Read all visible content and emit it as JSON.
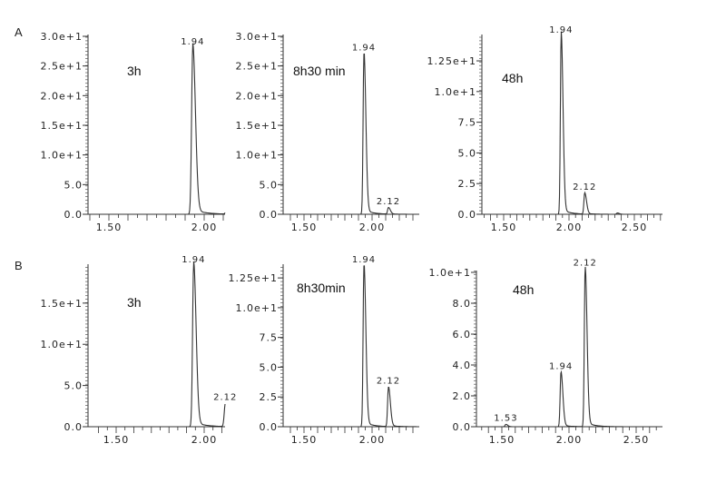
{
  "figure": {
    "panel_labels": [
      "A",
      "B"
    ]
  },
  "chart_data": [
    {
      "type": "line",
      "id": "A-3h",
      "row": "A",
      "title": "3h",
      "xlabel": "",
      "ylabel": "",
      "xlim": [
        1.39,
        2.28
      ],
      "ylim": [
        0,
        30
      ],
      "xticks": [
        "1.50",
        "2.00"
      ],
      "yticks": [
        "0.0",
        "5.0",
        "1.0e+1",
        "1.5e+1",
        "2.0e+1",
        "2.5e+1",
        "3.0e+1"
      ],
      "peaks": [
        {
          "rt": 1.94,
          "label": "1.94",
          "height": 28.0
        },
        {
          "rt": 2.12,
          "label": "",
          "height": 1.0
        }
      ]
    },
    {
      "type": "line",
      "id": "A-8h30min",
      "row": "A",
      "title": "8h30 min",
      "xlabel": "",
      "ylabel": "",
      "xlim": [
        1.35,
        2.3
      ],
      "ylim": [
        0,
        30
      ],
      "xticks": [
        "1.50",
        "2.00"
      ],
      "yticks": [
        "0.0",
        "5.0",
        "1.0e+1",
        "1.5e+1",
        "2.0e+1",
        "2.5e+1",
        "3.0e+1"
      ],
      "peaks": [
        {
          "rt": 1.94,
          "label": "1.94",
          "height": 27.0
        },
        {
          "rt": 2.12,
          "label": "2.12",
          "height": 1.1
        }
      ]
    },
    {
      "type": "line",
      "id": "A-48h",
      "row": "A",
      "title": "48h",
      "xlabel": "",
      "ylabel": "",
      "xlim": [
        1.38,
        2.6
      ],
      "ylim": [
        0,
        14.5
      ],
      "xticks": [
        "1.50",
        "2.00",
        "2.50"
      ],
      "yticks": [
        "0.0",
        "2.5",
        "5.0",
        "7.5",
        "1.0e+1",
        "1.25e+1"
      ],
      "peaks": [
        {
          "rt": 1.94,
          "label": "1.94",
          "height": 14.5
        },
        {
          "rt": 2.12,
          "label": "2.12",
          "height": 1.7
        },
        {
          "rt": 2.37,
          "label": "",
          "height": 0.1
        }
      ]
    },
    {
      "type": "line",
      "id": "B-3h",
      "row": "B",
      "title": "3h",
      "xlabel": "",
      "ylabel": "",
      "xlim": [
        1.35,
        2.28
      ],
      "ylim": [
        0,
        19.5
      ],
      "xticks": [
        "1.50",
        "2.00"
      ],
      "yticks": [
        "0.0",
        "5.0",
        "1.0e+1",
        "1.5e+1"
      ],
      "peaks": [
        {
          "rt": 1.94,
          "label": "1.94",
          "height": 19.5
        },
        {
          "rt": 2.12,
          "label": "2.12",
          "height": 2.8
        }
      ]
    },
    {
      "type": "line",
      "id": "B-8h30min",
      "row": "B",
      "title": "8h30min",
      "xlabel": "",
      "ylabel": "",
      "xlim": [
        1.35,
        2.3
      ],
      "ylim": [
        0,
        13.5
      ],
      "xticks": [
        "1.50",
        "2.00"
      ],
      "yticks": [
        "0.0",
        "2.5",
        "5.0",
        "7.5",
        "1.0e+1",
        "1.25e+1"
      ],
      "peaks": [
        {
          "rt": 1.94,
          "label": "1.94",
          "height": 13.5
        },
        {
          "rt": 2.12,
          "label": "2.12",
          "height": 3.3
        }
      ]
    },
    {
      "type": "line",
      "id": "B-48h",
      "row": "B",
      "title": "48h",
      "xlabel": "",
      "ylabel": "",
      "xlim": [
        1.35,
        2.6
      ],
      "ylim": [
        0,
        10
      ],
      "xticks": [
        "1.50",
        "2.00",
        "2.50"
      ],
      "yticks": [
        "0.0",
        "2.0",
        "4.0",
        "6.0",
        "8.0",
        "1.0e+1"
      ],
      "peaks": [
        {
          "rt": 1.53,
          "label": "1.53",
          "height": 0.15
        },
        {
          "rt": 1.94,
          "label": "1.94",
          "height": 3.5
        },
        {
          "rt": 2.12,
          "label": "2.12",
          "height": 10.2
        }
      ]
    }
  ]
}
